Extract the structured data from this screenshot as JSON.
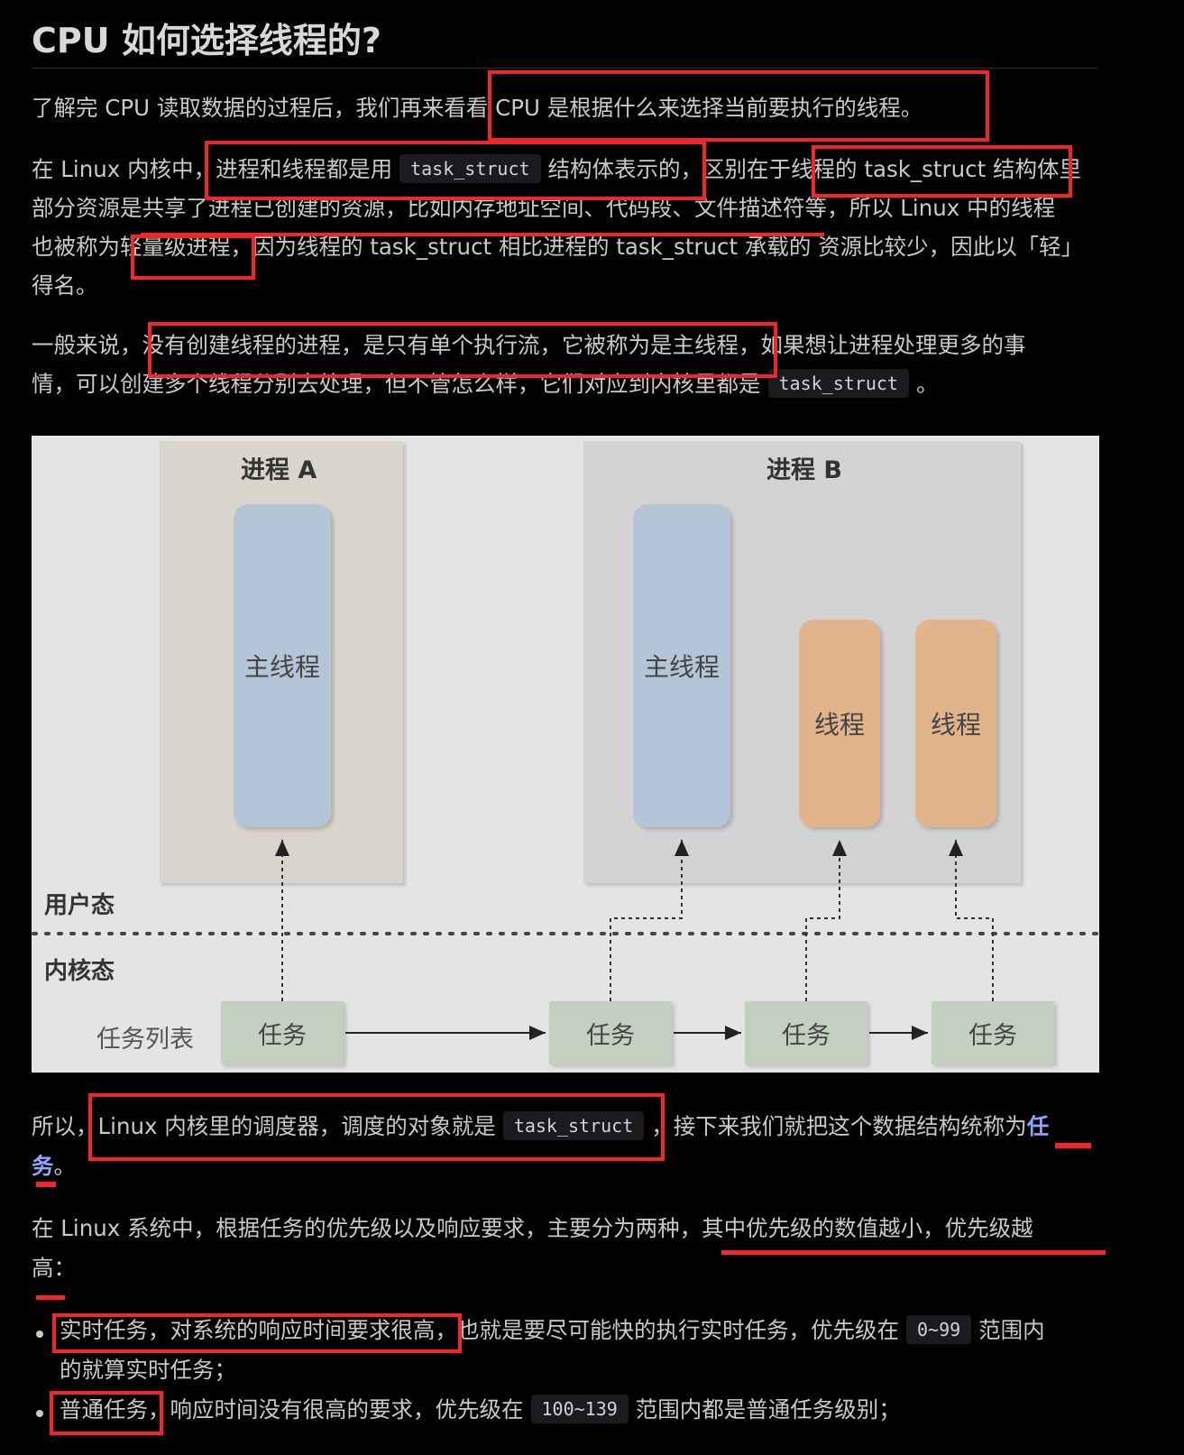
{
  "heading": "CPU 如何选择线程的?",
  "p1": "了解完 CPU 读取数据的过程后，我们再来看看 CPU 是根据什么来选择当前要执行的线程。",
  "p2": {
    "l1_a": "在 Linux 内核中，进程和线程都是用",
    "code1": "task_struct",
    "l1_b": "结构体表示的，区别在于线程的 task_struct 结构体里",
    "l2": "部分资源是共享了进程已创建的资源，比如内存地址空间、代码段、文件描述符等，所以 Linux 中的线程",
    "l3": "也被称为轻量级进程，因为线程的 task_struct 相比进程的 task_struct 承载的 资源比较少，因此以「轻」",
    "l4": "得名。"
  },
  "p3": {
    "l1": "一般来说，没有创建线程的进程，是只有单个执行流，它被称为是主线程，如果想让进程处理更多的事",
    "l2": "情，可以创建多个线程分别去处理，但不管怎么样，它们对应到内核里都是",
    "code": "task_struct",
    "l2_end": "。"
  },
  "diagram": {
    "process_a": "进程 A",
    "process_b": "进程 B",
    "main_thread_a": "主线程",
    "main_thread_b": "主线程",
    "thread_1": "线程",
    "thread_2": "线程",
    "user_mode": "用户态",
    "kernel_mode": "内核态",
    "task_list": "任务列表",
    "task_1": "任务",
    "task_2": "任务",
    "task_3": "任务",
    "task_4": "任务"
  },
  "p4": {
    "l1_a": "所以，Linux 内核里的调度器，调度的对象就是",
    "code": "task_struct",
    "l1_b": "，接下来我们就把这个数据结构统称为",
    "kw_1": "任",
    "kw_2": "务",
    "l2_end": "。"
  },
  "p5": {
    "l1": "在 Linux 系统中，根据任务的优先级以及响应要求，主要分为两种，其中优先级的数值越小，优先级越",
    "l2": "高："
  },
  "list": [
    {
      "text_a": "实时任务，对系统的响应时间要求很高，也就是要尽可能快的执行实时任务，优先级在",
      "code": "0~99",
      "text_b": "范围内",
      "text_c": "的就算实时任务；"
    },
    {
      "text_a": "普通任务，响应时间没有很高的要求，优先级在",
      "code": "100~139",
      "text_b": "范围内都是普通任务级别；"
    }
  ],
  "colors": {
    "highlight": "#f0262a",
    "keyword": "#8fa6ff",
    "main_thread": "#b4c5d8",
    "thread": "#e2b48c",
    "task": "#c3cfbf"
  }
}
